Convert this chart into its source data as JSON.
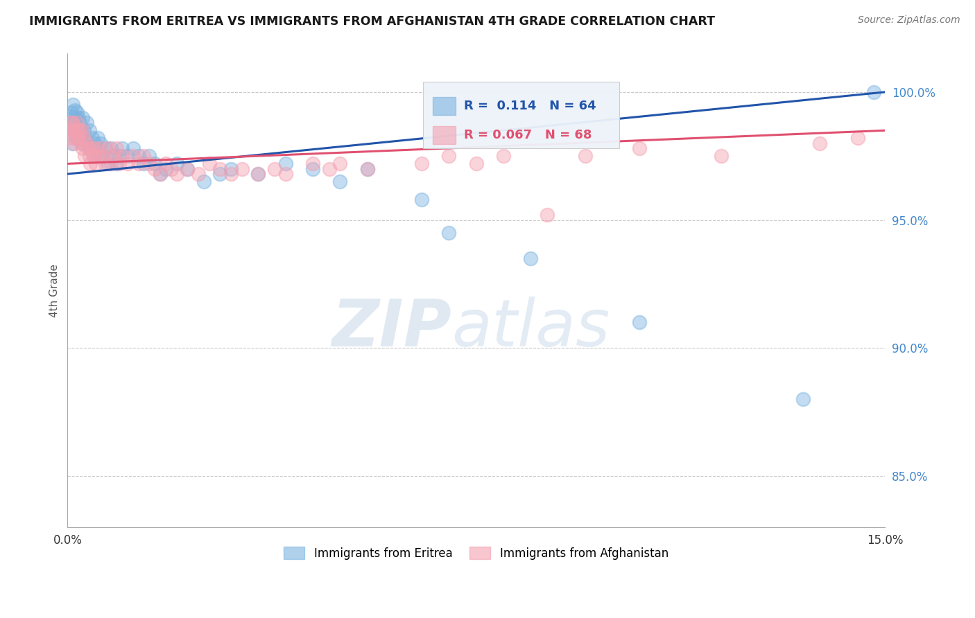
{
  "title": "IMMIGRANTS FROM ERITREA VS IMMIGRANTS FROM AFGHANISTAN 4TH GRADE CORRELATION CHART",
  "source_text": "Source: ZipAtlas.com",
  "ylabel": "4th Grade",
  "xlim": [
    0.0,
    15.0
  ],
  "ylim": [
    83.0,
    101.5
  ],
  "yticks": [
    85.0,
    90.0,
    95.0,
    100.0
  ],
  "xticks": [
    0.0,
    3.0,
    6.0,
    9.0,
    12.0,
    15.0
  ],
  "xtick_labels": [
    "0.0%",
    "",
    "",
    "",
    "",
    "15.0%"
  ],
  "ytick_labels": [
    "85.0%",
    "90.0%",
    "95.0%",
    "100.0%"
  ],
  "color_eritrea": "#7bb3e0",
  "color_afghanistan": "#f4a0b0",
  "line_color_eritrea": "#2255aa",
  "line_color_afghanistan": "#e05070",
  "R_eritrea": 0.114,
  "N_eritrea": 64,
  "R_afghanistan": 0.067,
  "N_afghanistan": 68,
  "legend_label_eritrea": "Immigrants from Eritrea",
  "legend_label_afghanistan": "Immigrants from Afghanistan",
  "watermark_zip": "ZIP",
  "watermark_atlas": "atlas",
  "scatter_eritrea_x": [
    0.05,
    0.07,
    0.08,
    0.09,
    0.1,
    0.1,
    0.12,
    0.13,
    0.14,
    0.15,
    0.17,
    0.18,
    0.2,
    0.2,
    0.22,
    0.23,
    0.25,
    0.27,
    0.28,
    0.3,
    0.32,
    0.35,
    0.38,
    0.4,
    0.42,
    0.45,
    0.48,
    0.5,
    0.52,
    0.55,
    0.58,
    0.6,
    0.65,
    0.7,
    0.75,
    0.8,
    0.85,
    0.9,
    0.95,
    1.0,
    1.1,
    1.2,
    1.3,
    1.4,
    1.5,
    1.6,
    1.7,
    1.8,
    2.0,
    2.2,
    2.5,
    2.8,
    3.0,
    3.5,
    4.0,
    4.5,
    5.0,
    5.5,
    6.5,
    7.0,
    8.5,
    10.5,
    13.5,
    14.8
  ],
  "scatter_eritrea_y": [
    98.8,
    99.2,
    98.5,
    98.0,
    99.5,
    99.0,
    98.8,
    99.3,
    98.5,
    99.0,
    98.2,
    99.2,
    98.5,
    99.0,
    98.8,
    98.2,
    98.5,
    98.0,
    99.0,
    98.5,
    98.2,
    98.8,
    98.0,
    98.5,
    97.8,
    98.2,
    97.5,
    98.0,
    97.8,
    98.2,
    97.5,
    98.0,
    97.5,
    97.8,
    97.2,
    97.8,
    97.5,
    97.2,
    97.5,
    97.8,
    97.5,
    97.8,
    97.5,
    97.2,
    97.5,
    97.2,
    96.8,
    97.0,
    97.2,
    97.0,
    96.5,
    96.8,
    97.0,
    96.8,
    97.2,
    97.0,
    96.5,
    97.0,
    95.8,
    94.5,
    93.5,
    91.0,
    88.0,
    100.0
  ],
  "scatter_afghanistan_x": [
    0.05,
    0.07,
    0.08,
    0.09,
    0.1,
    0.12,
    0.13,
    0.15,
    0.17,
    0.18,
    0.2,
    0.22,
    0.25,
    0.27,
    0.28,
    0.3,
    0.32,
    0.35,
    0.38,
    0.4,
    0.42,
    0.45,
    0.48,
    0.5,
    0.52,
    0.55,
    0.6,
    0.65,
    0.7,
    0.75,
    0.8,
    0.85,
    0.9,
    0.95,
    1.0,
    1.1,
    1.2,
    1.3,
    1.4,
    1.5,
    1.6,
    1.7,
    1.8,
    1.9,
    2.0,
    2.2,
    2.4,
    2.6,
    2.8,
    3.0,
    3.2,
    3.5,
    3.8,
    4.0,
    4.5,
    4.8,
    5.0,
    5.5,
    6.5,
    7.0,
    7.5,
    8.0,
    8.8,
    9.5,
    10.5,
    12.0,
    13.8,
    14.5
  ],
  "scatter_afghanistan_y": [
    98.5,
    98.8,
    98.2,
    98.8,
    98.5,
    98.0,
    98.5,
    98.2,
    98.8,
    98.5,
    98.2,
    98.5,
    98.0,
    98.5,
    97.8,
    98.2,
    97.5,
    98.0,
    97.8,
    97.5,
    97.2,
    97.8,
    97.5,
    97.8,
    97.2,
    97.5,
    97.8,
    97.5,
    97.2,
    97.8,
    97.2,
    97.5,
    97.8,
    97.2,
    97.5,
    97.2,
    97.5,
    97.2,
    97.5,
    97.2,
    97.0,
    96.8,
    97.2,
    97.0,
    96.8,
    97.0,
    96.8,
    97.2,
    97.0,
    96.8,
    97.0,
    96.8,
    97.0,
    96.8,
    97.2,
    97.0,
    97.2,
    97.0,
    97.2,
    97.5,
    97.2,
    97.5,
    95.2,
    97.5,
    97.8,
    97.5,
    98.0,
    98.2
  ],
  "trendline_eritrea_y0": 96.8,
  "trendline_eritrea_y1": 100.0,
  "trendline_afghanistan_y0": 97.2,
  "trendline_afghanistan_y1": 98.5
}
